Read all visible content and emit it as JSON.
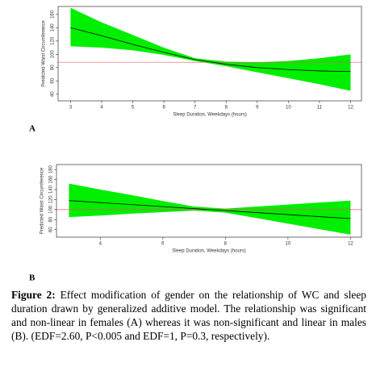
{
  "chart_data": [
    {
      "type": "line",
      "panel_label": "A",
      "xlabel": "Sleep Duration, Weekdays (hours)",
      "ylabel": "Predicted Waist Circumference",
      "x": [
        3,
        4,
        5,
        6,
        7,
        8,
        9,
        10,
        11,
        12
      ],
      "fit": [
        140,
        128,
        115,
        103,
        92,
        85,
        80,
        77,
        75,
        74
      ],
      "lower": [
        112,
        110,
        106,
        99,
        90,
        82,
        73,
        64,
        55,
        45
      ],
      "upper": [
        170,
        148,
        129,
        110,
        94,
        89,
        88,
        90,
        94,
        100
      ],
      "reference_line": 88,
      "line_color": "#000000",
      "band_color": "#00ee00",
      "reference_color": "#e06060",
      "xlim": [
        2.6,
        12.35
      ],
      "ylim": [
        30,
        172
      ],
      "xticks": [
        3,
        4,
        5,
        6,
        7,
        8,
        9,
        10,
        11,
        12
      ],
      "yticks": [
        40,
        60,
        80,
        100,
        120,
        140,
        160
      ]
    },
    {
      "type": "line",
      "panel_label": "B",
      "xlabel": "Sleep Duration, Weekdays (hours)",
      "ylabel": "Predicted Waist Circumference",
      "x": [
        3,
        4,
        5,
        6,
        7,
        8,
        9,
        10,
        11,
        12
      ],
      "fit": [
        118,
        114,
        110,
        106,
        102,
        98,
        94,
        90,
        86,
        82
      ],
      "lower": [
        85,
        88,
        92,
        95,
        98,
        94,
        83,
        72,
        61,
        50
      ],
      "upper": [
        152,
        140,
        129,
        117,
        106,
        102,
        106,
        110,
        114,
        118
      ],
      "reference_line": 100,
      "line_color": "#000000",
      "band_color": "#00ee00",
      "reference_color": "#e06060",
      "xlim": [
        2.6,
        12.35
      ],
      "ylim": [
        45,
        190
      ],
      "xticks": [
        4,
        6,
        8,
        10,
        12
      ],
      "yticks": [
        60,
        80,
        100,
        120,
        140,
        160,
        180
      ]
    }
  ],
  "caption": {
    "label": "Figure 2:",
    "text": "Effect modification of gender on the relationship of WC and sleep duration drawn by generalized additive model. The relationship was significant and non-linear in females (A) whereas it was non-significant and linear in males (B). (EDF=2.60, P<0.005 and EDF=1, P=0.3, respectively)."
  }
}
